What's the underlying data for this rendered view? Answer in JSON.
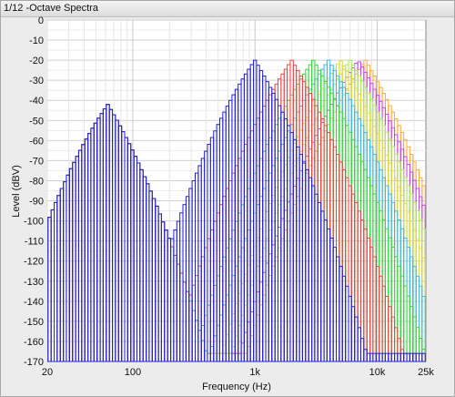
{
  "window": {
    "title": "1/12 -Octave Spectra"
  },
  "chart_data": {
    "type": "bar",
    "title": "1/12 -Octave Spectra",
    "xlabel": "Frequency (Hz)",
    "ylabel": "Level (dBV)",
    "xscale": "log",
    "xlim": [
      20,
      25000
    ],
    "ylim": [
      -170,
      0
    ],
    "yticks": [
      "0",
      "-10",
      "-20",
      "-30",
      "-40",
      "-50",
      "-60",
      "-70",
      "-80",
      "-90",
      "-100",
      "-110",
      "-120",
      "-130",
      "-140",
      "-150",
      "-160",
      "-170"
    ],
    "xticks": [
      "20",
      "100",
      "1k",
      "10k",
      "25k"
    ],
    "grid": true,
    "legend": "none",
    "bands_per_octave": 12,
    "series": [
      {
        "color": "#2222dd",
        "peaks": [
          {
            "freq": 62.5,
            "level": -42
          },
          {
            "freq": 1000,
            "level": -20
          }
        ]
      },
      {
        "color": "#ee4444",
        "peaks": [
          {
            "freq": 62.5,
            "level": -42
          },
          {
            "freq": 2000,
            "level": -20
          }
        ]
      },
      {
        "color": "#33dd33",
        "peaks": [
          {
            "freq": 62.5,
            "level": -42
          },
          {
            "freq": 3000,
            "level": -20
          }
        ]
      },
      {
        "color": "#33bbee",
        "peaks": [
          {
            "freq": 62.5,
            "level": -42
          },
          {
            "freq": 4000,
            "level": -20
          }
        ]
      },
      {
        "color": "#dddd33",
        "peaks": [
          {
            "freq": 62.5,
            "level": -42
          },
          {
            "freq": 5000,
            "level": -20
          }
        ]
      },
      {
        "color": "#aaee55",
        "peaks": [
          {
            "freq": 62.5,
            "level": -42
          },
          {
            "freq": 6000,
            "level": -20
          }
        ]
      },
      {
        "color": "#cc44ee",
        "peaks": [
          {
            "freq": 62.5,
            "level": -42
          },
          {
            "freq": 7000,
            "level": -20
          }
        ]
      },
      {
        "color": "#ffaa33",
        "peaks": [
          {
            "freq": 62.5,
            "level": -42
          },
          {
            "freq": 8000,
            "level": -20
          }
        ]
      }
    ]
  }
}
